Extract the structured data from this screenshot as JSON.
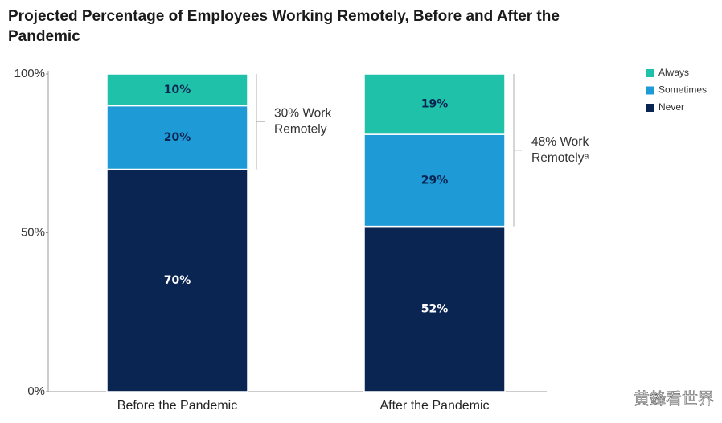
{
  "chart_data": {
    "type": "stacked_bar",
    "title_lines": [
      "Projected Percentage of Employees Working Remotely, Before and After the",
      "Pandemic"
    ],
    "categories": [
      "Before the Pandemic",
      "After the Pandemic"
    ],
    "series": [
      {
        "name": "Never",
        "color": "#0b2553",
        "label_color": "#ffffff",
        "values": [
          70,
          52
        ],
        "value_labels": [
          "70%",
          "52%"
        ]
      },
      {
        "name": "Sometimes",
        "color": "#1e9bd7",
        "label_color": "#0b2553",
        "values": [
          20,
          29
        ],
        "value_labels": [
          "20%",
          "29%"
        ]
      },
      {
        "name": "Always",
        "color": "#1fc1a8",
        "label_color": "#0b2553",
        "values": [
          10,
          19
        ],
        "value_labels": [
          "10%",
          "19%"
        ]
      }
    ],
    "ylim": [
      0,
      100
    ],
    "yticks": [
      {
        "value": 0,
        "label": "0%"
      },
      {
        "value": 50,
        "label": "50%"
      },
      {
        "value": 100,
        "label": "100%"
      }
    ],
    "annotations": [
      {
        "lines": [
          "30% Work",
          "Remotely"
        ]
      },
      {
        "lines": [
          "48% Work",
          "Remotelyᵃ"
        ]
      }
    ],
    "watermark": "黄鋒看世界"
  }
}
